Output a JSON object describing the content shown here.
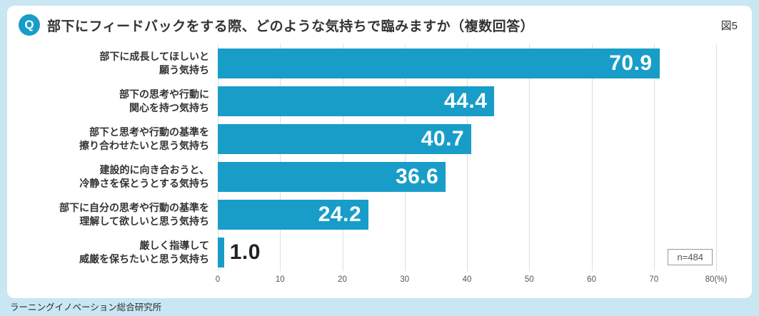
{
  "header": {
    "q_badge": "Q",
    "title": "部下にフィードバックをする際、どのような気持ちで臨みますか（複数回答）",
    "figure_label": "図5"
  },
  "chart_data": {
    "type": "bar",
    "orientation": "horizontal",
    "title": "部下にフィードバックをする際、どのような気持ちで臨みますか（複数回答）",
    "categories": [
      "部下に成長してほしいと\n願う気持ち",
      "部下の思考や行動に\n関心を持つ気持ち",
      "部下と思考や行動の基準を\n擦り合わせたいと思う気持ち",
      "建設的に向き合おうと、\n冷静さを保とうとする気持ち",
      "部下に自分の思考や行動の基準を\n理解して欲しいと思う気持ち",
      "厳しく指導して\n威厳を保ちたいと思う気持ち"
    ],
    "values": [
      70.9,
      44.4,
      40.7,
      36.6,
      24.2,
      1.0
    ],
    "value_labels": [
      "70.9",
      "44.4",
      "40.7",
      "36.6",
      "24.2",
      "1.0"
    ],
    "xlim": [
      0,
      80
    ],
    "x_ticks": [
      "0",
      "10",
      "20",
      "30",
      "40",
      "50",
      "60",
      "70",
      "80(%)"
    ],
    "grid": true,
    "legend": "none",
    "bar_color": "#189dc8",
    "sample_note": "n=484"
  },
  "footer": {
    "source": "ラーニングイノベーション総合研究所"
  },
  "colors": {
    "background": "#c9e6f3",
    "panel": "#ffffff",
    "accent": "#189dc8"
  }
}
